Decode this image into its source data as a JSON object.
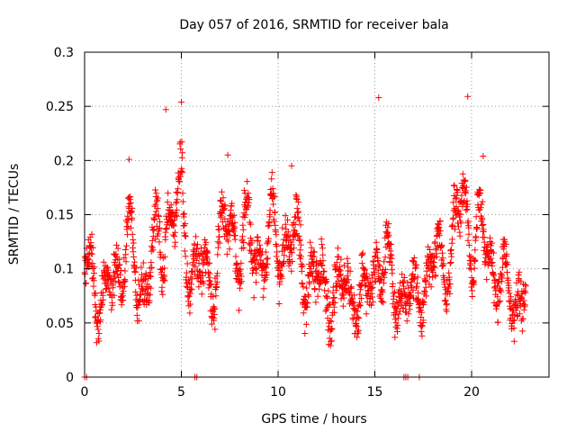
{
  "chart_data": {
    "type": "scatter",
    "title": "Day 057 of 2016, SRMTID for receiver bala",
    "xlabel": "GPS time / hours",
    "ylabel": "SRMTID / TECUs",
    "xlim": [
      0,
      24
    ],
    "ylim": [
      0,
      0.3
    ],
    "xticks": [
      0,
      5,
      10,
      15,
      20
    ],
    "xtick_labels": [
      "0",
      "5",
      "10",
      "15",
      "20"
    ],
    "yticks": [
      0,
      0.05,
      0.1,
      0.15,
      0.2,
      0.25,
      0.3
    ],
    "ytick_labels": [
      "0",
      "0.05",
      "0.1",
      "0.15",
      "0.2",
      "0.25",
      "0.3"
    ],
    "grid": true,
    "marker": "+",
    "series": [
      {
        "name": "SRMTID",
        "color": "#ff0000",
        "x_range_hours": [
          0,
          22.8
        ],
        "sample_interval_hours": 0.0125,
        "trend_points": [
          [
            0.0,
            0.1
          ],
          [
            0.5,
            0.1
          ],
          [
            0.8,
            0.065
          ],
          [
            1.5,
            0.09
          ],
          [
            2.2,
            0.125
          ],
          [
            2.8,
            0.085
          ],
          [
            3.5,
            0.1
          ],
          [
            4.3,
            0.155
          ],
          [
            5.0,
            0.15
          ],
          [
            5.6,
            0.1
          ],
          [
            6.5,
            0.09
          ],
          [
            7.3,
            0.135
          ],
          [
            8.5,
            0.12
          ],
          [
            9.5,
            0.12
          ],
          [
            10.5,
            0.13
          ],
          [
            11.5,
            0.1
          ],
          [
            12.5,
            0.08
          ],
          [
            13.5,
            0.08
          ],
          [
            14.5,
            0.07
          ],
          [
            15.2,
            0.12
          ],
          [
            16.0,
            0.08
          ],
          [
            17.0,
            0.07
          ],
          [
            18.0,
            0.1
          ],
          [
            19.0,
            0.12
          ],
          [
            19.5,
            0.16
          ],
          [
            20.0,
            0.14
          ],
          [
            21.0,
            0.11
          ],
          [
            22.0,
            0.07
          ],
          [
            22.8,
            0.08
          ]
        ],
        "spread": 0.03,
        "peaks": [
          {
            "x": 4.2,
            "y": 0.247
          },
          {
            "x": 5.0,
            "y": 0.254
          },
          {
            "x": 15.2,
            "y": 0.258
          },
          {
            "x": 19.8,
            "y": 0.259
          },
          {
            "x": 2.3,
            "y": 0.201
          },
          {
            "x": 7.4,
            "y": 0.205
          },
          {
            "x": 10.7,
            "y": 0.195
          },
          {
            "x": 20.6,
            "y": 0.204
          }
        ],
        "zero_points_x": [
          0.0,
          0.1,
          5.7,
          5.8,
          16.5,
          16.6,
          16.7,
          17.3
        ]
      }
    ]
  }
}
